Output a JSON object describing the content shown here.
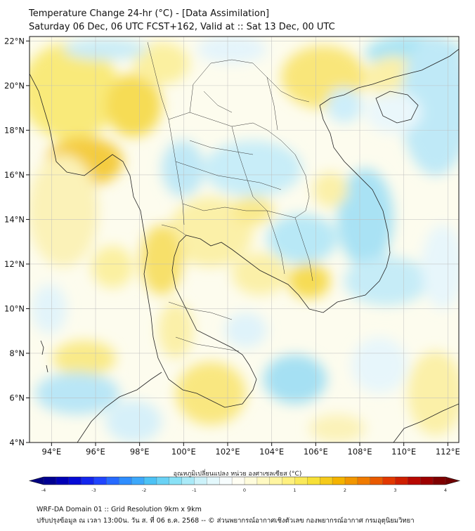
{
  "header": {
    "title_line1": "Temperature Change 24-hr (°C) - [Data Assimilation]",
    "title_line2": "Saturday 06 Dec, 06 UTC FCST+162, Valid at :: Sat 13 Dec, 00 UTC"
  },
  "map": {
    "lon_ticks": [
      "94°E",
      "96°E",
      "98°E",
      "100°E",
      "102°E",
      "104°E",
      "106°E",
      "108°E",
      "110°E",
      "112°E"
    ],
    "lat_ticks": [
      "22°N",
      "20°N",
      "18°N",
      "16°N",
      "14°N",
      "12°N",
      "10°N",
      "8°N",
      "6°N",
      "4°N"
    ],
    "lon_range": [
      93,
      112.5
    ],
    "lat_range": [
      4,
      22.2
    ]
  },
  "colorbar": {
    "title": "อุณหภูมิเปลี่ยนแปลง หน่วย องศาเซลเซียส (°C)",
    "tick_labels": [
      "-4",
      "-3",
      "-2",
      "-1",
      "0",
      "1",
      "2",
      "3",
      "4"
    ],
    "min": -4,
    "max": 4,
    "colors": [
      "#000080",
      "#0000cd",
      "#1e3cff",
      "#2e8bff",
      "#4cc3f5",
      "#8ee3f6",
      "#d6f4fb",
      "#ffffff",
      "#fffbd0",
      "#fff28a",
      "#f7e43c",
      "#f4b400",
      "#f07800",
      "#e03000",
      "#b00000",
      "#700000"
    ]
  },
  "footer": {
    "line1": "WRF-DA Domain 01 :: Grid Resolution 9km x 9km",
    "line2": "ปรับปรุงข้อมูล ณ เวลา 13:00น. วัน ส. ที่ 06 ธ.ค. 2568 -- © ส่วนพยากรณ์อากาศเชิงตัวเลข กองพยากรณ์อากาศ กรมอุตุนิยมวิทยา"
  }
}
